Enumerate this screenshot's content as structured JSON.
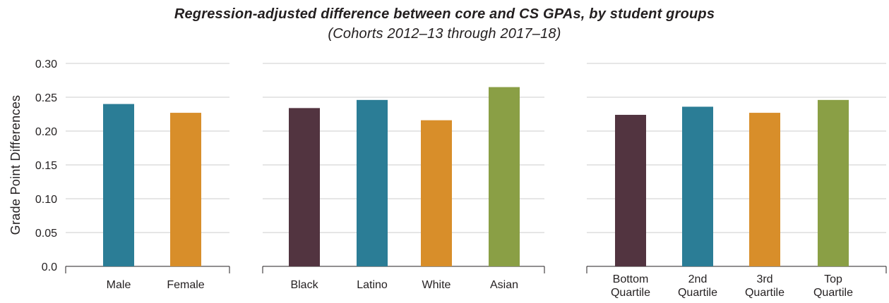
{
  "chart_data": {
    "type": "bar",
    "title": "Regression-adjusted difference between core and CS GPAs, by student groups",
    "subtitle": "(Cohorts 2012–13 through 2017–18)",
    "ylabel": "Grade Point Differences",
    "ylim": [
      0,
      0.3
    ],
    "yticks": [
      "0.0",
      "0.05",
      "0.10",
      "0.15",
      "0.20",
      "0.25",
      "0.30"
    ],
    "grid": true,
    "colors": {
      "maroon": "#523440",
      "teal": "#2b7d96",
      "orange": "#d88e2a",
      "green": "#8a9f45",
      "grid": "#cccccc",
      "axis": "#231f20"
    },
    "panels": [
      {
        "categories": [
          [
            "Male"
          ],
          [
            "Female"
          ]
        ],
        "values": [
          0.24,
          0.227
        ],
        "colors": [
          "teal",
          "orange"
        ]
      },
      {
        "categories": [
          [
            "Black"
          ],
          [
            "Latino"
          ],
          [
            "White"
          ],
          [
            "Asian"
          ]
        ],
        "values": [
          0.234,
          0.246,
          0.216,
          0.265
        ],
        "colors": [
          "maroon",
          "teal",
          "orange",
          "green"
        ]
      },
      {
        "categories": [
          [
            "Bottom",
            "Quartile"
          ],
          [
            "2nd",
            "Quartile"
          ],
          [
            "3rd",
            "Quartile"
          ],
          [
            "Top",
            "Quartile"
          ]
        ],
        "values": [
          0.224,
          0.236,
          0.227,
          0.246
        ],
        "colors": [
          "maroon",
          "teal",
          "orange",
          "green"
        ]
      }
    ]
  }
}
